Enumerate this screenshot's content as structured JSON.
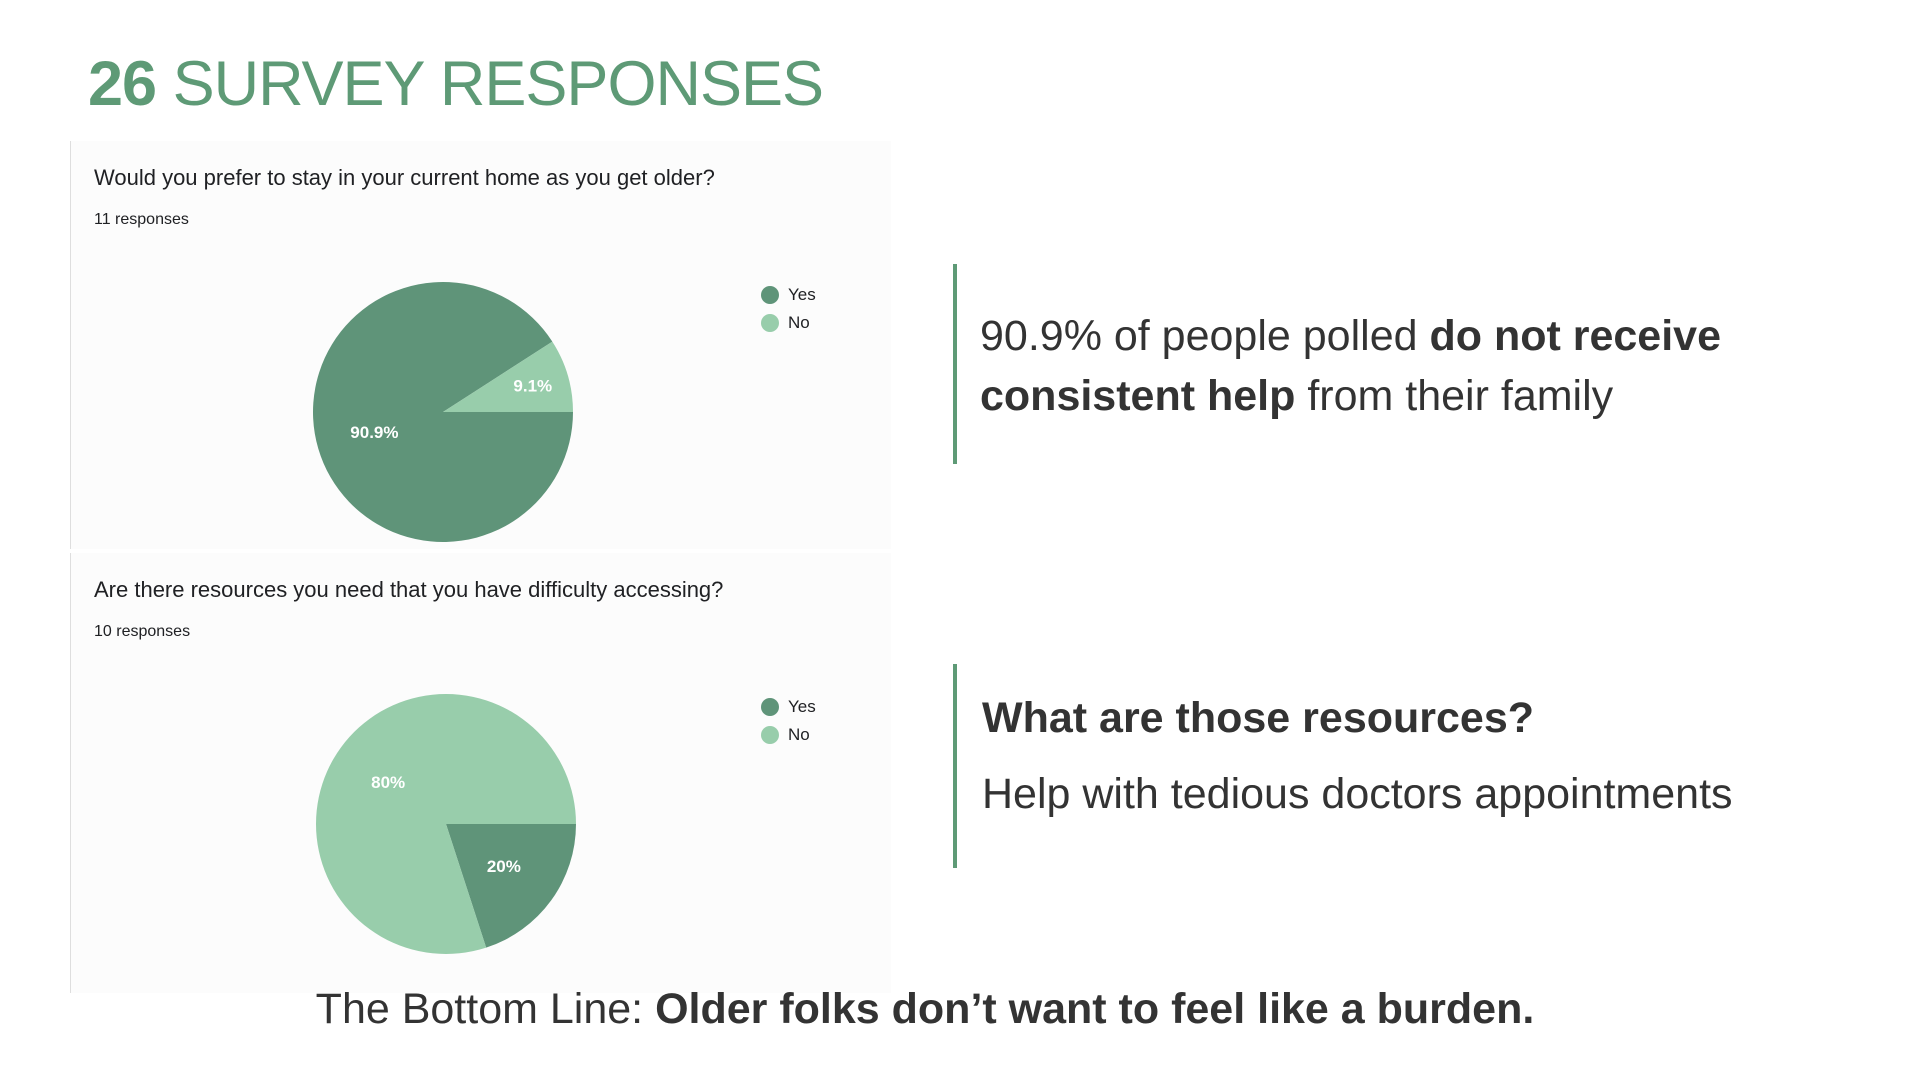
{
  "title": {
    "number": "26",
    "text": "SURVEY RESPONSES"
  },
  "colors": {
    "accent": "#5e9a76",
    "yes": "#5f9479",
    "no": "#98cdab"
  },
  "chart_data": [
    {
      "type": "pie",
      "title": "Would you prefer to stay in your current home as you get older?",
      "subtitle": "11 responses",
      "labels": [
        "Yes",
        "No"
      ],
      "values": [
        90.9,
        9.1
      ],
      "value_labels": [
        "90.9%",
        "9.1%"
      ],
      "colors": [
        "#5f9479",
        "#98cdab"
      ],
      "legend": "top-right"
    },
    {
      "type": "pie",
      "title": "Are there resources you need that you have difficulty accessing?",
      "subtitle": "10 responses",
      "labels": [
        "Yes",
        "No"
      ],
      "values": [
        20,
        80
      ],
      "value_labels": [
        "20%",
        "80%"
      ],
      "colors": [
        "#5f9479",
        "#98cdab"
      ],
      "legend": "top-right"
    }
  ],
  "insights": {
    "first": {
      "pre": "90.9% of people polled ",
      "bold": "do not receive consistent help",
      "post": " from their family"
    },
    "second": {
      "heading": "What are those resources?",
      "sub": "Help with tedious doctors appointments"
    }
  },
  "bottom_line": {
    "label": "The Bottom Line: ",
    "text": "Older folks don’t want to feel like a burden."
  }
}
